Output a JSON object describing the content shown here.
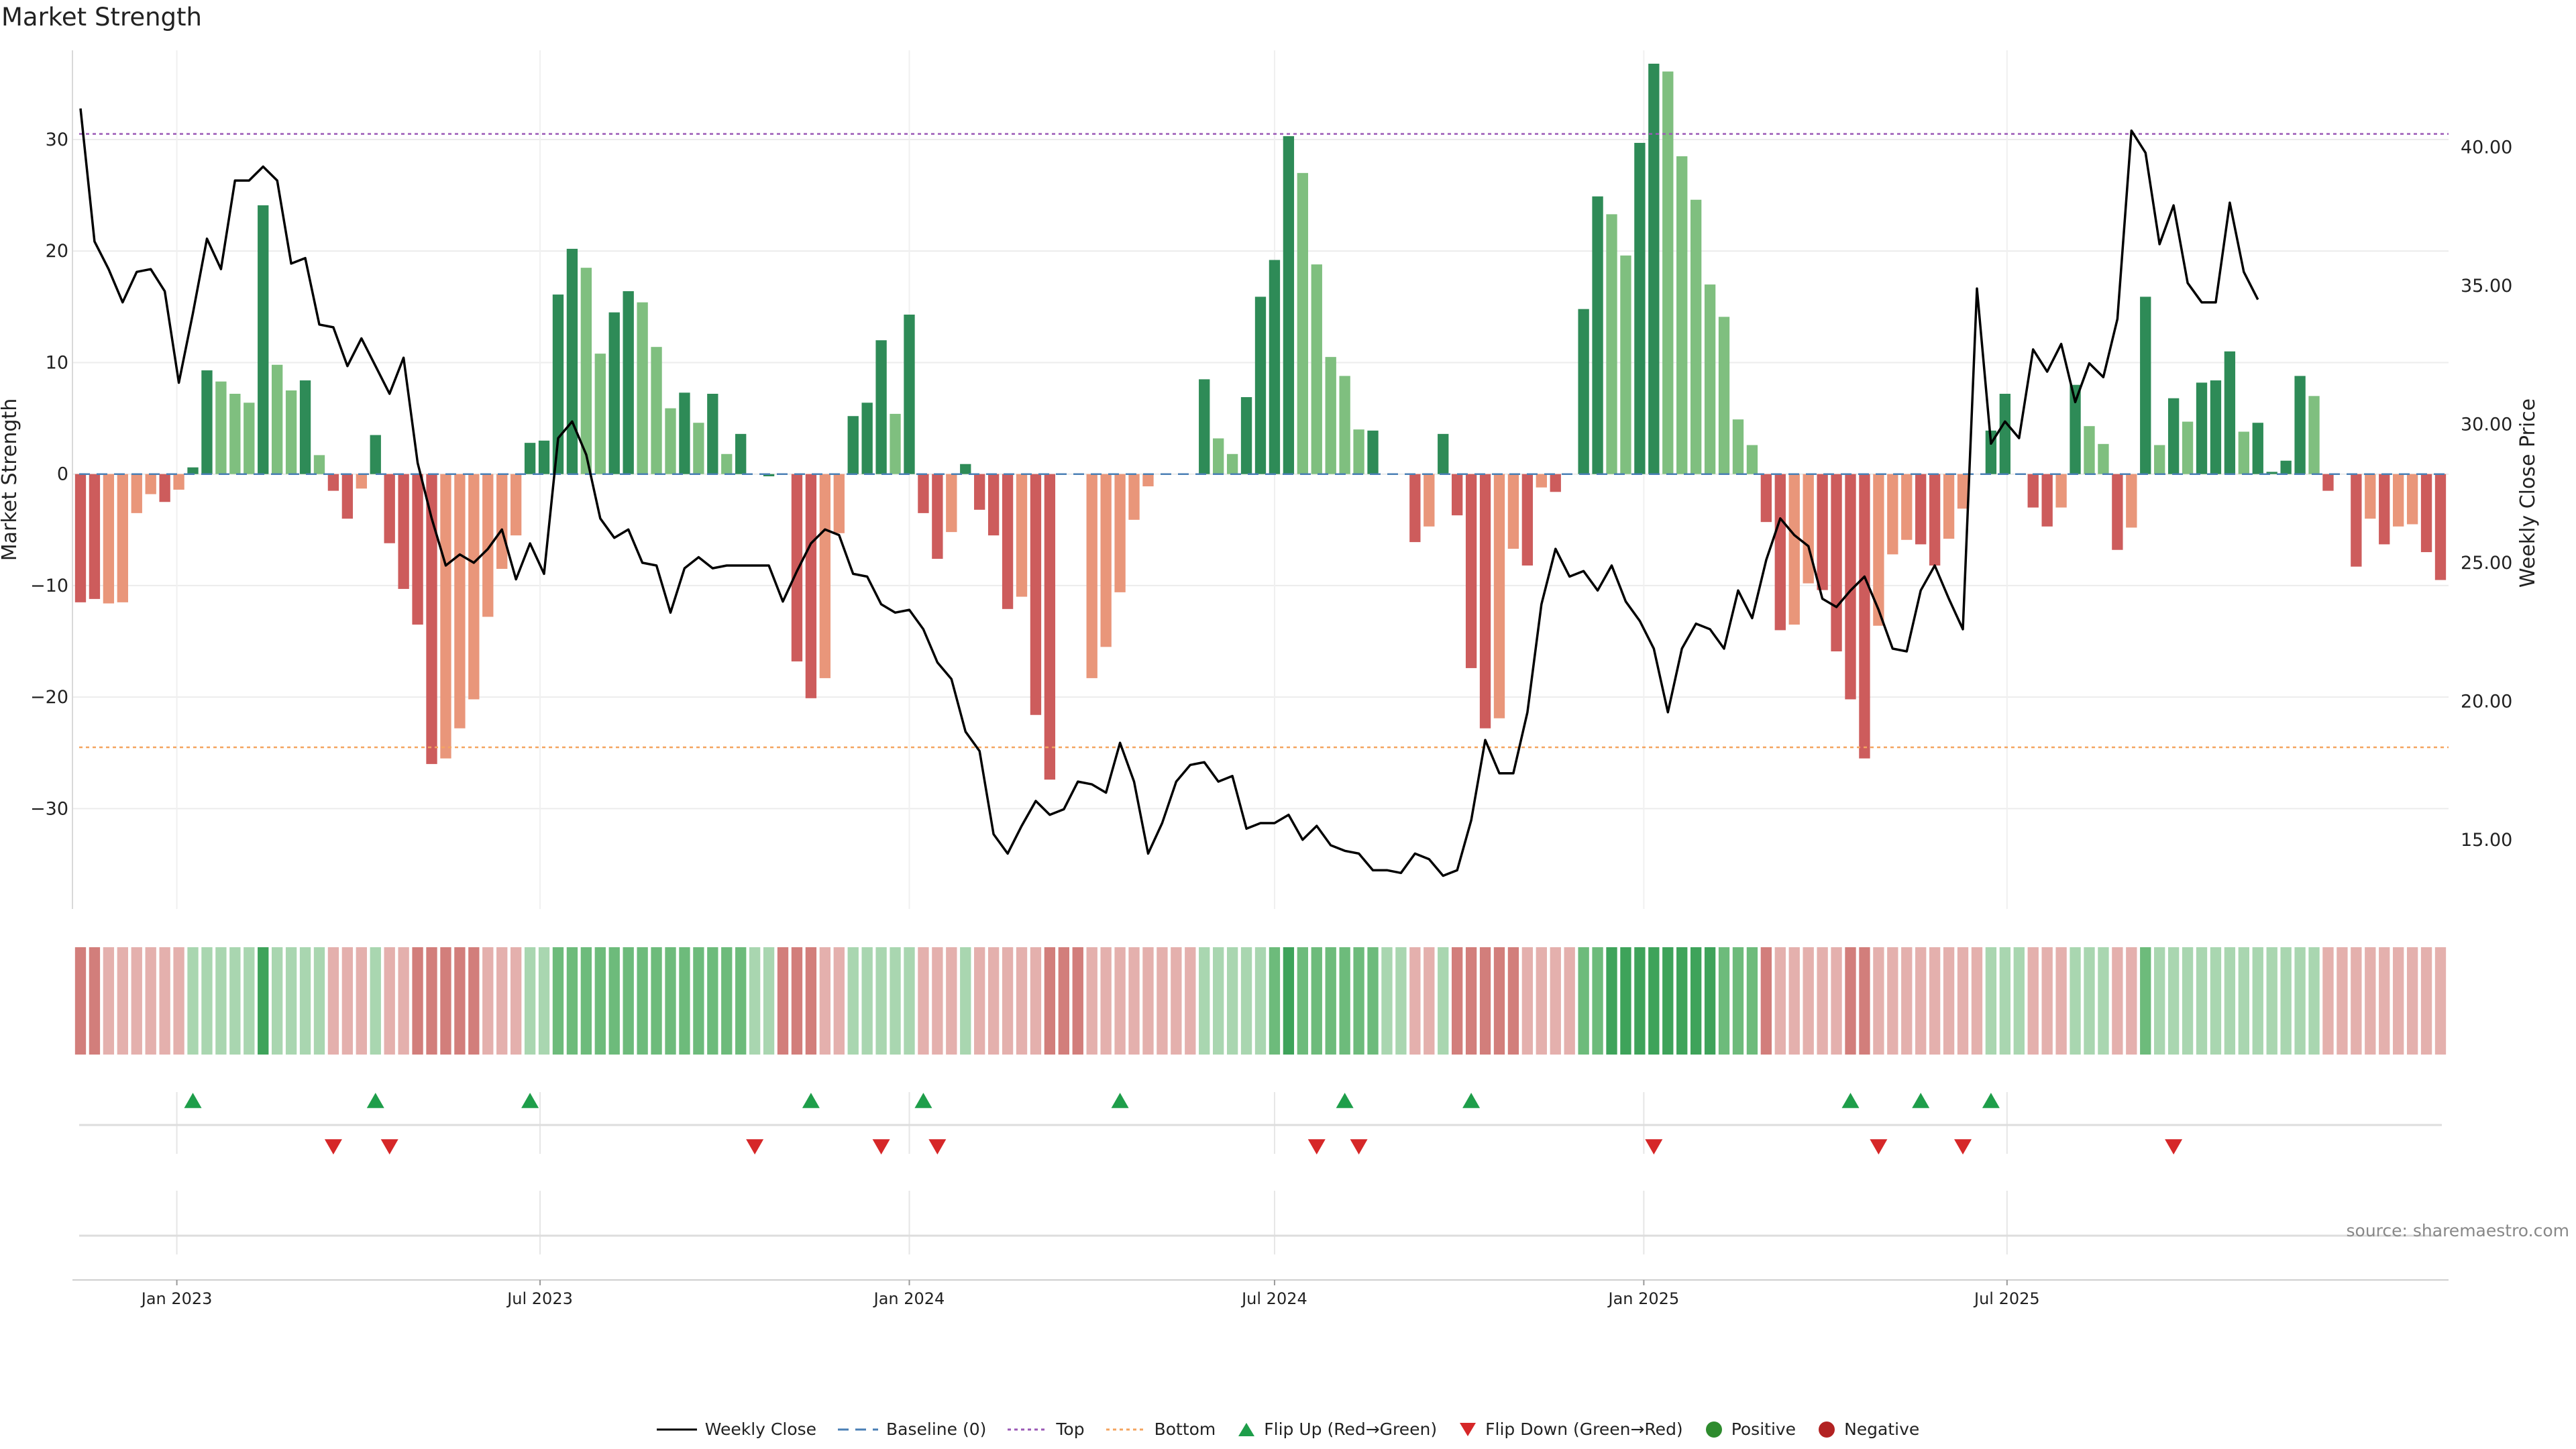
{
  "title": "Market Strength",
  "source": "source: sharemaestro.com",
  "colors": {
    "strong_green": "#2e8b57",
    "light_green": "#7fbf7f",
    "strong_red": "#cd5c5c",
    "light_red": "#e9967a",
    "price_line": "#000000",
    "top_line": "#9b59b6",
    "bottom_line": "#f4a460",
    "baseline": "#4a7fb5",
    "flip_up": "#1e9e4a",
    "flip_down": "#d62728"
  },
  "legend": [
    {
      "label": "Weekly Close",
      "icon": "solid-line"
    },
    {
      "label": "Baseline (0)",
      "icon": "dashed-line"
    },
    {
      "label": "Top",
      "icon": "dotted-purple-line"
    },
    {
      "label": "Bottom",
      "icon": "dotted-orange-line"
    },
    {
      "label": "Flip Up (Red→Green)",
      "icon": "triangle-up"
    },
    {
      "label": "Flip Down (Green→Red)",
      "icon": "triangle-down"
    },
    {
      "label": "Positive",
      "icon": "green-dot"
    },
    {
      "label": "Negative",
      "icon": "red-dot"
    }
  ],
  "chart_data": {
    "type": "bar",
    "ylabel": "Market Strength",
    "y2label": "Weekly Close Price",
    "ylim": [
      -39,
      38
    ],
    "y2lim": [
      12.5,
      43.5
    ],
    "yticks": [
      30,
      20,
      10,
      0,
      -10,
      -20,
      -30
    ],
    "ytick_labels": [
      "30",
      "20",
      "10",
      "0",
      "−10",
      "−20",
      "−30"
    ],
    "y2ticks": [
      40,
      35,
      30,
      25,
      20,
      15
    ],
    "y2tick_labels": [
      "40.00",
      "35.00",
      "30.00",
      "25.00",
      "20.00",
      "15.00"
    ],
    "top_level": 30.5,
    "bottom_level": -24.5,
    "x_start": "2022-11-14",
    "xticks": [
      "2023-01-01",
      "2023-07-01",
      "2024-01-01",
      "2024-07-01",
      "2025-01-01",
      "2025-07-01"
    ],
    "xtick_labels": [
      "Jan 2023",
      "Jul 2023",
      "Jan 2024",
      "Jul 2024",
      "Jan 2025",
      "Jul 2025"
    ],
    "x_end": "2025-10-13",
    "strength": [
      -11.5,
      -11.2,
      -11.6,
      -11.5,
      -3.5,
      -1.8,
      -2.5,
      -1.4,
      0.6,
      9.3,
      8.3,
      7.2,
      6.4,
      24.1,
      9.8,
      7.5,
      8.4,
      1.7,
      -1.5,
      -4.0,
      -1.3,
      3.5,
      -6.2,
      -10.3,
      -13.5,
      -26.0,
      -25.5,
      -22.8,
      -20.2,
      -12.8,
      -8.5,
      -5.5,
      2.8,
      3.0,
      16.1,
      20.2,
      18.5,
      10.8,
      14.5,
      16.4,
      15.4,
      11.4,
      5.9,
      7.3,
      4.6,
      7.2,
      1.8,
      3.6,
      0,
      -0.2,
      0,
      -16.8,
      -20.1,
      -18.3,
      -5.3,
      5.2,
      6.4,
      12.0,
      5.4,
      14.3,
      -3.5,
      -7.6,
      -5.2,
      0.9,
      -3.2,
      -5.5,
      -12.1,
      -11.0,
      -21.6,
      -27.4,
      0,
      0,
      -18.3,
      -15.5,
      -10.6,
      -4.1,
      -1.1,
      0,
      0,
      0,
      8.5,
      3.2,
      1.8,
      6.9,
      15.9,
      19.2,
      30.3,
      27.0,
      18.8,
      10.5,
      8.8,
      4.0,
      3.9,
      0,
      0,
      -6.1,
      -4.7,
      3.6,
      -3.7,
      -17.4,
      -22.8,
      -21.9,
      -6.7,
      -8.2,
      -1.2,
      -1.6,
      0,
      14.8,
      24.9,
      23.3,
      19.6,
      29.7,
      36.8,
      36.1,
      28.5,
      24.6,
      17.0,
      14.1,
      4.9,
      2.6,
      -4.3,
      -14.0,
      -13.5,
      -9.8,
      -10.4,
      -15.9,
      -20.2,
      -25.5,
      -13.6,
      -7.2,
      -5.9,
      -6.3,
      -8.2,
      -5.8,
      -3.1,
      0,
      3.9,
      7.2,
      0,
      -3.0,
      -4.7,
      -3.0,
      8.0,
      4.3,
      2.7,
      -6.8,
      -4.8,
      15.9,
      2.6,
      6.8,
      4.7,
      8.2,
      8.4,
      11.0,
      3.8,
      4.6,
      0.2,
      1.2,
      8.8,
      7.0,
      -1.5,
      0,
      -8.3,
      -4.0,
      -6.3,
      -4.7,
      -4.5,
      -7.0,
      -9.5
    ],
    "strength_tint": [
      "sr",
      "sr",
      "lr",
      "lr",
      "lr",
      "lr",
      "sr",
      "lr",
      "sg",
      "sg",
      "lg",
      "lg",
      "lg",
      "sg",
      "lg",
      "lg",
      "sg",
      "lg",
      "sr",
      "sr",
      "lr",
      "sg",
      "sr",
      "sr",
      "sr",
      "sr",
      "lr",
      "lr",
      "lr",
      "lr",
      "lr",
      "lr",
      "sg",
      "sg",
      "sg",
      "sg",
      "lg",
      "lg",
      "sg",
      "sg",
      "lg",
      "lg",
      "lg",
      "sg",
      "lg",
      "sg",
      "lg",
      "sg",
      "sg",
      "sg",
      "sg",
      "sr",
      "sr",
      "lr",
      "lr",
      "sg",
      "sg",
      "sg",
      "lg",
      "sg",
      "sr",
      "sr",
      "lr",
      "sg",
      "sr",
      "sr",
      "sr",
      "lr",
      "sr",
      "sr",
      "sr",
      "sr",
      "lr",
      "lr",
      "lr",
      "lr",
      "lr",
      "lr",
      "lr",
      "lr",
      "sg",
      "lg",
      "lg",
      "sg",
      "sg",
      "sg",
      "sg",
      "lg",
      "lg",
      "lg",
      "lg",
      "lg",
      "sg",
      "sg",
      "sg",
      "sr",
      "lr",
      "sg",
      "sr",
      "sr",
      "sr",
      "lr",
      "lr",
      "sr",
      "lr",
      "sr",
      "sr",
      "sg",
      "sg",
      "lg",
      "lg",
      "sg",
      "sg",
      "lg",
      "lg",
      "lg",
      "lg",
      "lg",
      "lg",
      "lg",
      "sr",
      "sr",
      "lr",
      "lr",
      "sr",
      "sr",
      "sr",
      "sr",
      "lr",
      "lr",
      "lr",
      "sr",
      "sr",
      "lr",
      "lr",
      "lr",
      "sg",
      "sg",
      "sg",
      "sr",
      "sr",
      "lr",
      "sg",
      "lg",
      "lg",
      "sr",
      "lr",
      "sg",
      "lg",
      "sg",
      "lg",
      "sg",
      "sg",
      "sg",
      "lg",
      "sg",
      "sg",
      "sg",
      "sg",
      "lg",
      "sr",
      "sr",
      "sr",
      "lr",
      "sr",
      "lr",
      "lr",
      "sr",
      "sr"
    ],
    "price": [
      41.4,
      36.6,
      35.6,
      34.4,
      35.5,
      35.6,
      34.8,
      31.5,
      34.0,
      36.7,
      35.6,
      38.8,
      38.8,
      39.3,
      38.8,
      35.8,
      36.0,
      33.6,
      33.5,
      32.1,
      33.1,
      32.1,
      31.1,
      32.4,
      28.6,
      26.6,
      24.9,
      25.3,
      25.0,
      25.5,
      26.2,
      24.4,
      25.7,
      24.6,
      29.5,
      30.1,
      28.9,
      26.6,
      25.9,
      26.2,
      25.0,
      24.9,
      23.2,
      24.8,
      25.2,
      24.8,
      24.9,
      24.9,
      24.9,
      24.9,
      23.6,
      24.7,
      25.7,
      26.2,
      26.0,
      24.6,
      24.5,
      23.5,
      23.2,
      23.3,
      22.6,
      21.4,
      20.8,
      18.9,
      18.2,
      15.2,
      14.5,
      15.5,
      16.4,
      15.9,
      16.1,
      17.1,
      17.0,
      16.7,
      18.5,
      17.1,
      14.5,
      15.6,
      17.1,
      17.7,
      17.8,
      17.1,
      17.3,
      15.4,
      15.6,
      15.6,
      15.9,
      15.0,
      15.5,
      14.8,
      14.6,
      14.5,
      13.9,
      13.9,
      13.8,
      14.5,
      14.3,
      13.7,
      13.9,
      15.7,
      18.6,
      17.4,
      17.4,
      19.6,
      23.5,
      25.5,
      24.5,
      24.7,
      24.0,
      24.9,
      23.6,
      22.9,
      21.9,
      19.6,
      21.9,
      22.8,
      22.6,
      21.9,
      24.0,
      23.0,
      25.1,
      26.6,
      26.0,
      25.6,
      23.7,
      23.4,
      24.0,
      24.5,
      23.3,
      21.9,
      21.8,
      24.0,
      24.9,
      23.7,
      22.6,
      34.9,
      29.3,
      30.1,
      29.5,
      32.7,
      31.9,
      32.9,
      30.8,
      32.2,
      31.7,
      33.8,
      40.6,
      39.8,
      36.5,
      37.9,
      35.1,
      34.4,
      34.4,
      38.0,
      35.5,
      34.5
    ],
    "price_start_index": 0,
    "heat_level": [
      -2,
      -2,
      -1,
      -1,
      -1,
      -1,
      -1,
      -1,
      1,
      1,
      1,
      1,
      1,
      3,
      1,
      1,
      1,
      1,
      -1,
      -1,
      -1,
      1,
      -1,
      -1,
      -2,
      -2,
      -2,
      -2,
      -2,
      -1,
      -1,
      -1,
      1,
      1,
      2,
      2,
      2,
      2,
      2,
      2,
      2,
      2,
      2,
      2,
      2,
      2,
      2,
      2,
      1,
      1,
      -2,
      -2,
      -2,
      -1,
      -1,
      1,
      1,
      1,
      1,
      1,
      -1,
      -1,
      -1,
      1,
      -1,
      -1,
      -1,
      -1,
      -1,
      -2,
      -2,
      -2,
      -1,
      -1,
      -1,
      -1,
      -1,
      -1,
      -1,
      -1,
      1,
      1,
      1,
      1,
      1,
      2,
      3,
      2,
      2,
      2,
      2,
      2,
      2,
      1,
      1,
      -1,
      -1,
      1,
      -2,
      -2,
      -2,
      -2,
      -2,
      -1,
      -1,
      -1,
      -1,
      2,
      2,
      3,
      3,
      3,
      3,
      3,
      3,
      3,
      3,
      2,
      2,
      2,
      -2,
      -1,
      -1,
      -1,
      -1,
      -1,
      -2,
      -2,
      -1,
      -1,
      -1,
      -1,
      -1,
      -1,
      -1,
      -1,
      1,
      1,
      1,
      -1,
      -1,
      -1,
      1,
      1,
      1,
      -1,
      -1,
      2,
      1,
      1,
      1,
      1,
      1,
      1,
      1,
      1,
      1,
      1,
      1,
      1,
      -1,
      -1,
      -1,
      -1,
      -1,
      -1,
      -1,
      -1,
      -1
    ],
    "flip_up_weeks": [
      8,
      21,
      32,
      52,
      60,
      74,
      90,
      99,
      126,
      131,
      136
    ],
    "flip_down_weeks": [
      18,
      22,
      48,
      57,
      61,
      88,
      91,
      112,
      128,
      134,
      149
    ]
  }
}
